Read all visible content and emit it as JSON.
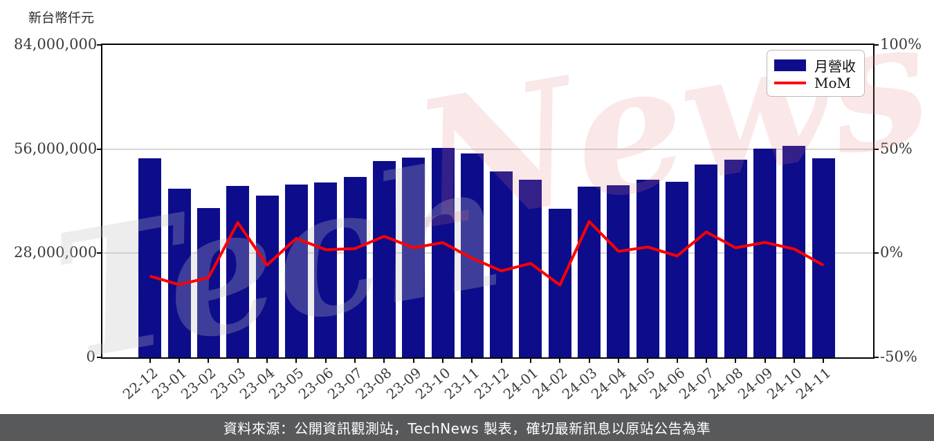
{
  "footer": {
    "text": "資料來源：公開資訊觀測站，TechNews 製表，確切最新訊息以原站公告為準"
  },
  "watermark": {
    "text_gray": "Tech",
    "text_pink": "News"
  },
  "legend": {
    "bar_label": "月營收",
    "line_label": "MoM"
  },
  "colors": {
    "bar": "#0d0d8c",
    "line": "#ff0000",
    "grid": "#d6d6d6",
    "footer_bg": "#58595b"
  },
  "chart_data": {
    "type": "bar",
    "title": "",
    "categories": [
      "22-12",
      "23-01",
      "23-02",
      "23-03",
      "23-04",
      "23-05",
      "23-06",
      "23-07",
      "23-08",
      "23-09",
      "23-10",
      "23-11",
      "23-12",
      "24-01",
      "24-02",
      "24-03",
      "24-04",
      "24-05",
      "24-06",
      "24-07",
      "24-08",
      "24-09",
      "24-10",
      "24-11"
    ],
    "series": [
      {
        "name": "月營收",
        "type": "bar",
        "axis": "left",
        "color": "#0d0d8c",
        "values": [
          53500000,
          45400000,
          40100000,
          46000000,
          43400000,
          46500000,
          47000000,
          48600000,
          52700000,
          53800000,
          56400000,
          54800000,
          50000000,
          47700000,
          39900000,
          45900000,
          46200000,
          47800000,
          47200000,
          51800000,
          53200000,
          56200000,
          56800000,
          53500000
        ]
      },
      {
        "name": "MoM",
        "type": "line",
        "axis": "right",
        "color": "#ff0000",
        "values": [
          -11.0,
          -15.1,
          -11.7,
          14.7,
          -5.7,
          7.1,
          1.7,
          2.2,
          8.1,
          2.6,
          5.1,
          -2.4,
          -8.5,
          -4.9,
          -15.3,
          15.2,
          0.9,
          3.0,
          -1.3,
          10.2,
          2.6,
          5.2,
          2.0,
          -5.8
        ]
      }
    ],
    "left_axis": {
      "label": "新台幣仟元",
      "min": 0,
      "max": 84000000,
      "ticks": [
        {
          "label": "84,000,000",
          "value": 84000000
        },
        {
          "label": "56,000,000",
          "value": 56000000
        },
        {
          "label": "28,000,000",
          "value": 28000000
        },
        {
          "label": "0",
          "value": 0
        }
      ]
    },
    "right_axis": {
      "min": -50,
      "max": 100,
      "ticks": [
        {
          "label": "100%",
          "value": 100
        },
        {
          "label": "50%",
          "value": 50
        },
        {
          "label": "0%",
          "value": 0
        },
        {
          "label": "-50%",
          "value": -50
        }
      ]
    },
    "grid": "horizontal-inner-ticks-only",
    "legend_position": "top-right"
  }
}
